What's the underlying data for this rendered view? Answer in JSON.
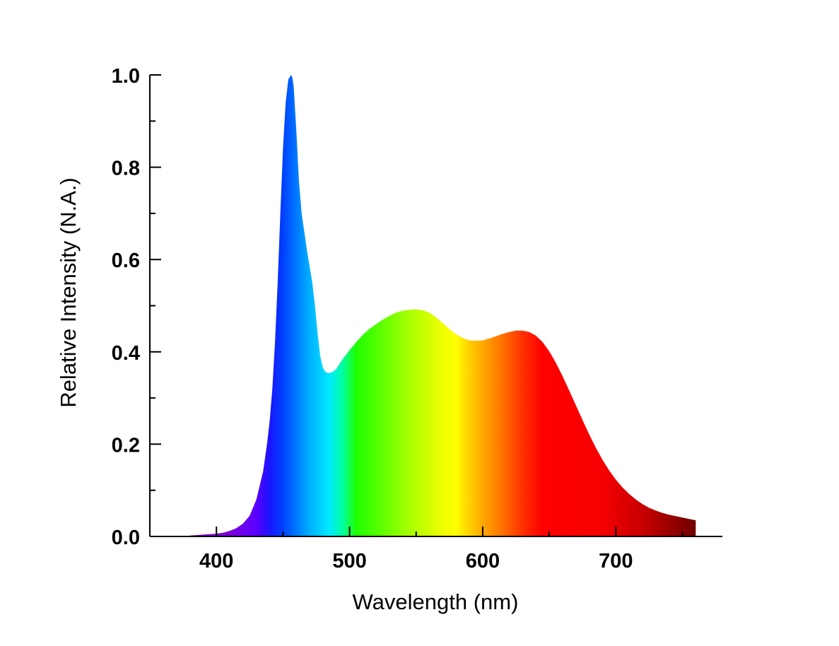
{
  "chart_data": {
    "type": "area",
    "title": "",
    "xlabel": "Wavelength (nm)",
    "ylabel": "Relative Intensity (N.A.)",
    "xlim": [
      350,
      780
    ],
    "ylim": [
      0,
      1.0
    ],
    "xticks": [
      400,
      500,
      600,
      700
    ],
    "xtick_labels": [
      "400",
      "500",
      "600",
      "700"
    ],
    "yticks": [
      0.0,
      0.2,
      0.4,
      0.6,
      0.8,
      1.0
    ],
    "ytick_labels": [
      "0.0",
      "0.2",
      "0.4",
      "0.6",
      "0.8",
      "1.0"
    ],
    "grid": false,
    "legend": "none",
    "fill": "visible-spectrum-gradient",
    "series": [
      {
        "x": [
          380,
          390,
          400,
          405,
          410,
          415,
          420,
          425,
          430,
          435,
          438,
          440,
          442,
          444,
          446,
          448,
          450,
          452,
          454,
          456,
          457,
          458,
          460,
          462,
          464,
          466,
          468,
          470,
          472,
          474,
          476,
          478,
          480,
          482,
          484,
          486,
          488,
          490,
          492,
          495,
          500,
          505,
          510,
          515,
          520,
          525,
          530,
          535,
          540,
          545,
          550,
          555,
          560,
          565,
          570,
          575,
          580,
          585,
          590,
          595,
          600,
          605,
          610,
          615,
          620,
          625,
          630,
          635,
          640,
          645,
          650,
          655,
          660,
          665,
          670,
          675,
          680,
          685,
          690,
          695,
          700,
          705,
          710,
          715,
          720,
          725,
          730,
          735,
          740,
          745,
          750,
          755,
          760
        ],
        "y": [
          0.002,
          0.004,
          0.006,
          0.008,
          0.012,
          0.018,
          0.028,
          0.045,
          0.08,
          0.14,
          0.2,
          0.25,
          0.32,
          0.42,
          0.55,
          0.7,
          0.84,
          0.94,
          0.99,
          1.0,
          0.995,
          0.975,
          0.88,
          0.77,
          0.7,
          0.66,
          0.62,
          0.585,
          0.55,
          0.5,
          0.44,
          0.39,
          0.365,
          0.356,
          0.354,
          0.355,
          0.358,
          0.363,
          0.372,
          0.385,
          0.404,
          0.421,
          0.437,
          0.45,
          0.46,
          0.47,
          0.478,
          0.485,
          0.489,
          0.491,
          0.492,
          0.49,
          0.485,
          0.475,
          0.462,
          0.449,
          0.438,
          0.43,
          0.425,
          0.424,
          0.425,
          0.429,
          0.434,
          0.439,
          0.443,
          0.446,
          0.446,
          0.443,
          0.435,
          0.421,
          0.401,
          0.376,
          0.347,
          0.316,
          0.284,
          0.252,
          0.221,
          0.192,
          0.166,
          0.143,
          0.123,
          0.106,
          0.092,
          0.08,
          0.07,
          0.062,
          0.056,
          0.051,
          0.047,
          0.044,
          0.041,
          0.038,
          0.035
        ]
      }
    ],
    "colors": {
      "spectrum_stops": [
        {
          "nm": 380,
          "color": "#7a00b0"
        },
        {
          "nm": 410,
          "color": "#7a00d9"
        },
        {
          "nm": 430,
          "color": "#5a00ff"
        },
        {
          "nm": 440,
          "color": "#1a14ff"
        },
        {
          "nm": 450,
          "color": "#0040ff"
        },
        {
          "nm": 460,
          "color": "#0078ff"
        },
        {
          "nm": 470,
          "color": "#00b0ff"
        },
        {
          "nm": 485,
          "color": "#00eaff"
        },
        {
          "nm": 495,
          "color": "#00ffa0"
        },
        {
          "nm": 505,
          "color": "#20ff00"
        },
        {
          "nm": 520,
          "color": "#50ff00"
        },
        {
          "nm": 545,
          "color": "#a8ff00"
        },
        {
          "nm": 570,
          "color": "#f0ff00"
        },
        {
          "nm": 580,
          "color": "#ffff00"
        },
        {
          "nm": 590,
          "color": "#ffd000"
        },
        {
          "nm": 600,
          "color": "#ffa800"
        },
        {
          "nm": 615,
          "color": "#ff7000"
        },
        {
          "nm": 630,
          "color": "#ff3000"
        },
        {
          "nm": 645,
          "color": "#ff0000"
        },
        {
          "nm": 690,
          "color": "#f50000"
        },
        {
          "nm": 720,
          "color": "#c80000"
        },
        {
          "nm": 760,
          "color": "#700000"
        }
      ]
    }
  }
}
